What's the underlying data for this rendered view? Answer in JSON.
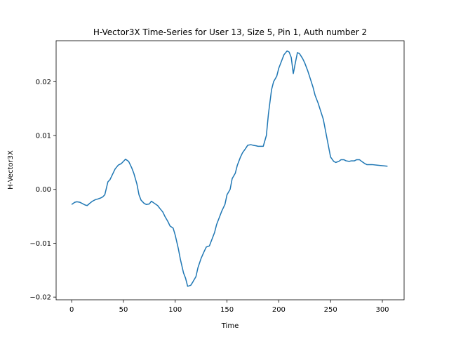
{
  "chart_data": {
    "type": "line",
    "title": "H-Vector3X Time-Series for User 13, Size 5, Pin 1, Auth number 2",
    "xlabel": "Time",
    "ylabel": "H-Vector3X",
    "xlim": [
      -15,
      321
    ],
    "ylim": [
      -0.0205,
      0.0276
    ],
    "xticks": [
      0,
      50,
      100,
      150,
      200,
      250,
      300
    ],
    "xtick_labels": [
      "0",
      "50",
      "100",
      "150",
      "200",
      "250",
      "300"
    ],
    "yticks": [
      -0.02,
      -0.01,
      0.0,
      0.01,
      0.02
    ],
    "ytick_labels": [
      "−0.02",
      "−0.01",
      "0.00",
      "0.01",
      "0.02"
    ],
    "grid": false,
    "line_color": "#1f77b4",
    "series": [
      {
        "x": [
          0,
          3,
          5,
          8,
          10,
          13,
          15,
          18,
          20,
          23,
          25,
          28,
          30,
          32,
          35,
          37,
          40,
          42,
          45,
          48,
          50,
          52,
          55,
          58,
          60,
          63,
          65,
          67,
          70,
          72,
          75,
          77,
          80,
          83,
          85,
          88,
          90,
          93,
          95,
          98,
          100,
          103,
          105,
          108,
          110,
          112,
          115,
          117,
          120,
          122,
          125,
          128,
          130,
          133,
          135,
          138,
          140,
          143,
          145,
          148,
          150,
          153,
          155,
          158,
          160,
          163,
          165,
          168,
          170,
          173,
          175,
          178,
          180,
          183,
          185,
          188,
          190,
          193,
          195,
          198,
          200,
          203,
          205,
          208,
          210,
          212,
          214,
          216,
          218,
          220,
          223,
          225,
          228,
          230,
          233,
          235,
          238,
          240,
          243,
          245,
          248,
          250,
          253,
          255,
          258,
          260,
          263,
          265,
          268,
          270,
          273,
          275,
          278,
          280,
          283,
          285,
          290,
          295,
          300,
          305
        ],
        "y": [
          -0.0028,
          -0.0024,
          -0.0023,
          -0.0024,
          -0.0026,
          -0.0029,
          -0.003,
          -0.0025,
          -0.0022,
          -0.0019,
          -0.0018,
          -0.0016,
          -0.0014,
          -0.001,
          0.0014,
          0.0018,
          0.003,
          0.0038,
          0.0045,
          0.0048,
          0.0052,
          0.0056,
          0.0052,
          0.004,
          0.003,
          0.001,
          -0.001,
          -0.002,
          -0.0026,
          -0.0028,
          -0.0027,
          -0.0022,
          -0.0026,
          -0.003,
          -0.0035,
          -0.0042,
          -0.005,
          -0.006,
          -0.0068,
          -0.0072,
          -0.0085,
          -0.011,
          -0.013,
          -0.0155,
          -0.0165,
          -0.018,
          -0.0178,
          -0.0172,
          -0.0162,
          -0.0145,
          -0.0128,
          -0.0115,
          -0.0107,
          -0.0105,
          -0.0095,
          -0.008,
          -0.0065,
          -0.005,
          -0.004,
          -0.0028,
          -0.001,
          0.0,
          0.002,
          0.003,
          0.0045,
          0.006,
          0.0068,
          0.0076,
          0.0082,
          0.0083,
          0.0082,
          0.0081,
          0.008,
          0.008,
          0.008,
          0.01,
          0.014,
          0.0185,
          0.02,
          0.021,
          0.0225,
          0.024,
          0.025,
          0.0257,
          0.0255,
          0.0245,
          0.0215,
          0.0235,
          0.0254,
          0.0252,
          0.0243,
          0.0235,
          0.022,
          0.0208,
          0.019,
          0.0175,
          0.016,
          0.0148,
          0.013,
          0.011,
          0.008,
          0.006,
          0.0052,
          0.005,
          0.0052,
          0.0055,
          0.0055,
          0.0053,
          0.0052,
          0.0053,
          0.0053,
          0.0055,
          0.0055,
          0.0052,
          0.0048,
          0.0046,
          0.0046,
          0.0045,
          0.0044,
          0.0043
        ]
      }
    ]
  }
}
